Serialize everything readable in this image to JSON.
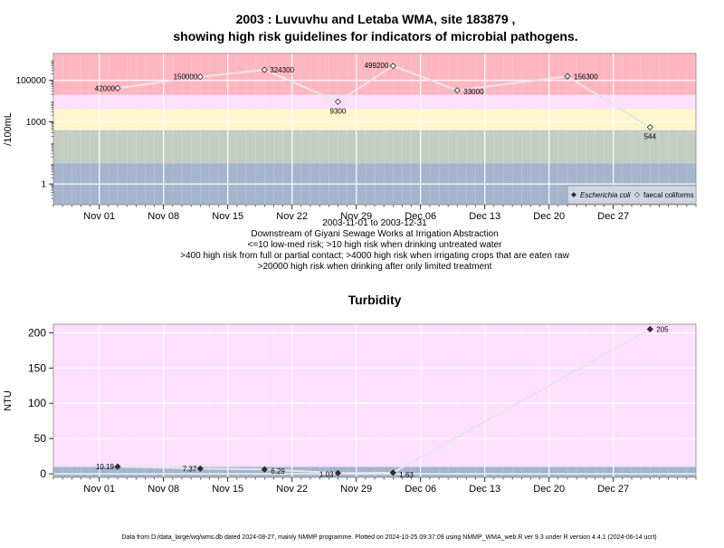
{
  "chart_data": [
    {
      "type": "scatter",
      "title_line1": "2003 : Luvuvhu and Letaba WMA, site 183879 ,",
      "title_line2": "showing high risk guidelines for indicators of microbial pathogens.",
      "ylabel": "/100mL",
      "yscale": "log",
      "ylim": [
        0.1,
        2000000
      ],
      "xlim": [
        "2003-10-27",
        "2004-01-05"
      ],
      "x_ticks": [
        {
          "date": "2003-11-01",
          "label": "Nov 01"
        },
        {
          "date": "2003-11-08",
          "label": "Nov 08"
        },
        {
          "date": "2003-11-15",
          "label": "Nov 15"
        },
        {
          "date": "2003-11-22",
          "label": "Nov 22"
        },
        {
          "date": "2003-11-29",
          "label": "Nov 29"
        },
        {
          "date": "2003-12-06",
          "label": "Dec 06"
        },
        {
          "date": "2003-12-13",
          "label": "Dec 13"
        },
        {
          "date": "2003-12-20",
          "label": "Dec 20"
        },
        {
          "date": "2003-12-27",
          "label": "Dec 27"
        }
      ],
      "y_ticks": [
        {
          "value": 1,
          "label": "1"
        },
        {
          "value": 1000,
          "label": "1000"
        },
        {
          "value": 100000,
          "label": "100000"
        }
      ],
      "bands": [
        {
          "from": 0.1,
          "to": 10,
          "color": "#a3b4cd"
        },
        {
          "from": 10,
          "to": 400,
          "color": "#c3cdc3"
        },
        {
          "from": 400,
          "to": 4000,
          "color": "#fff6cc"
        },
        {
          "from": 4000,
          "to": 20000,
          "color": "#ffdfff"
        },
        {
          "from": 20000,
          "to": 2000000,
          "color": "#ffb6c1"
        }
      ],
      "series": [
        {
          "name": "faecal coliforms",
          "marker": "open-diamond",
          "points": [
            {
              "x": "2003-11-03",
              "y": 42000,
              "label": "42000"
            },
            {
              "x": "2003-11-12",
              "y": 150000,
              "label": "150000"
            },
            {
              "x": "2003-11-19",
              "y": 324300,
              "label": "324300"
            },
            {
              "x": "2003-11-27",
              "y": 9300,
              "label": "9300"
            },
            {
              "x": "2003-12-03",
              "y": 499200,
              "label": "499200"
            },
            {
              "x": "2003-12-10",
              "y": 33000,
              "label": "33000"
            },
            {
              "x": "2003-12-22",
              "y": 156300,
              "label": "156300"
            },
            {
              "x": "2003-12-31",
              "y": 544,
              "label": "544"
            }
          ]
        }
      ],
      "legend": {
        "placement": "bottom-right",
        "entries": [
          {
            "name": "Escherichia coli",
            "marker": "filled-diamond"
          },
          {
            "name": "faecal coliforms",
            "marker": "open-diamond"
          }
        ]
      },
      "subtitle_lines": [
        "2003-11-01 to 2003-12-31",
        "Downstream of Giyani Sewage Works at Irrigation Abstraction",
        "<=10 low-med risk; >10 high risk when drinking untreated water",
        ">400 high risk from full or partial contact; >4000 high risk when irrigating crops that are eaten raw",
        ">20000 high risk when drinking after only limited treatment"
      ],
      "grid": true
    },
    {
      "type": "scatter",
      "title": "Turbidity",
      "ylabel": "NTU",
      "ylim": [
        -5,
        212
      ],
      "xlim": [
        "2003-10-27",
        "2004-01-05"
      ],
      "x_ticks": [
        {
          "date": "2003-11-01",
          "label": "Nov 01"
        },
        {
          "date": "2003-11-08",
          "label": "Nov 08"
        },
        {
          "date": "2003-11-15",
          "label": "Nov 15"
        },
        {
          "date": "2003-11-22",
          "label": "Nov 22"
        },
        {
          "date": "2003-11-29",
          "label": "Nov 29"
        },
        {
          "date": "2003-12-06",
          "label": "Dec 06"
        },
        {
          "date": "2003-12-13",
          "label": "Dec 13"
        },
        {
          "date": "2003-12-20",
          "label": "Dec 20"
        },
        {
          "date": "2003-12-27",
          "label": "Dec 27"
        }
      ],
      "y_ticks": [
        {
          "value": 0,
          "label": "0"
        },
        {
          "value": 50,
          "label": "50"
        },
        {
          "value": 100,
          "label": "100"
        },
        {
          "value": 150,
          "label": "150"
        },
        {
          "value": 200,
          "label": "200"
        }
      ],
      "bands": [
        {
          "from": -5,
          "to": 10,
          "color": "#a3b4cd"
        },
        {
          "from": 10,
          "to": 212,
          "color": "#ffdfff"
        }
      ],
      "series": [
        {
          "marker": "filled-diamond",
          "points": [
            {
              "x": "2003-11-03",
              "y": 10.19,
              "label": "10.19"
            },
            {
              "x": "2003-11-12",
              "y": 7.37,
              "label": "7.37"
            },
            {
              "x": "2003-11-19",
              "y": 6.29,
              "label": "6.29"
            },
            {
              "x": "2003-11-27",
              "y": 1.03,
              "label": "1.03"
            },
            {
              "x": "2003-12-03",
              "y": 1.63,
              "label": "1.63"
            },
            {
              "x": "2003-12-31",
              "y": 205,
              "label": "205"
            }
          ]
        }
      ],
      "grid": true
    }
  ],
  "footer": "Data from D:/data_large/wq/wms.db dated 2024-08-27, mainly NMMP programme. Plotted on 2024-10-25 09:37:09 using NMMP_WMA_web.R ver 9.3 under R version 4.4.1 (2024-06-14 ucrt)"
}
